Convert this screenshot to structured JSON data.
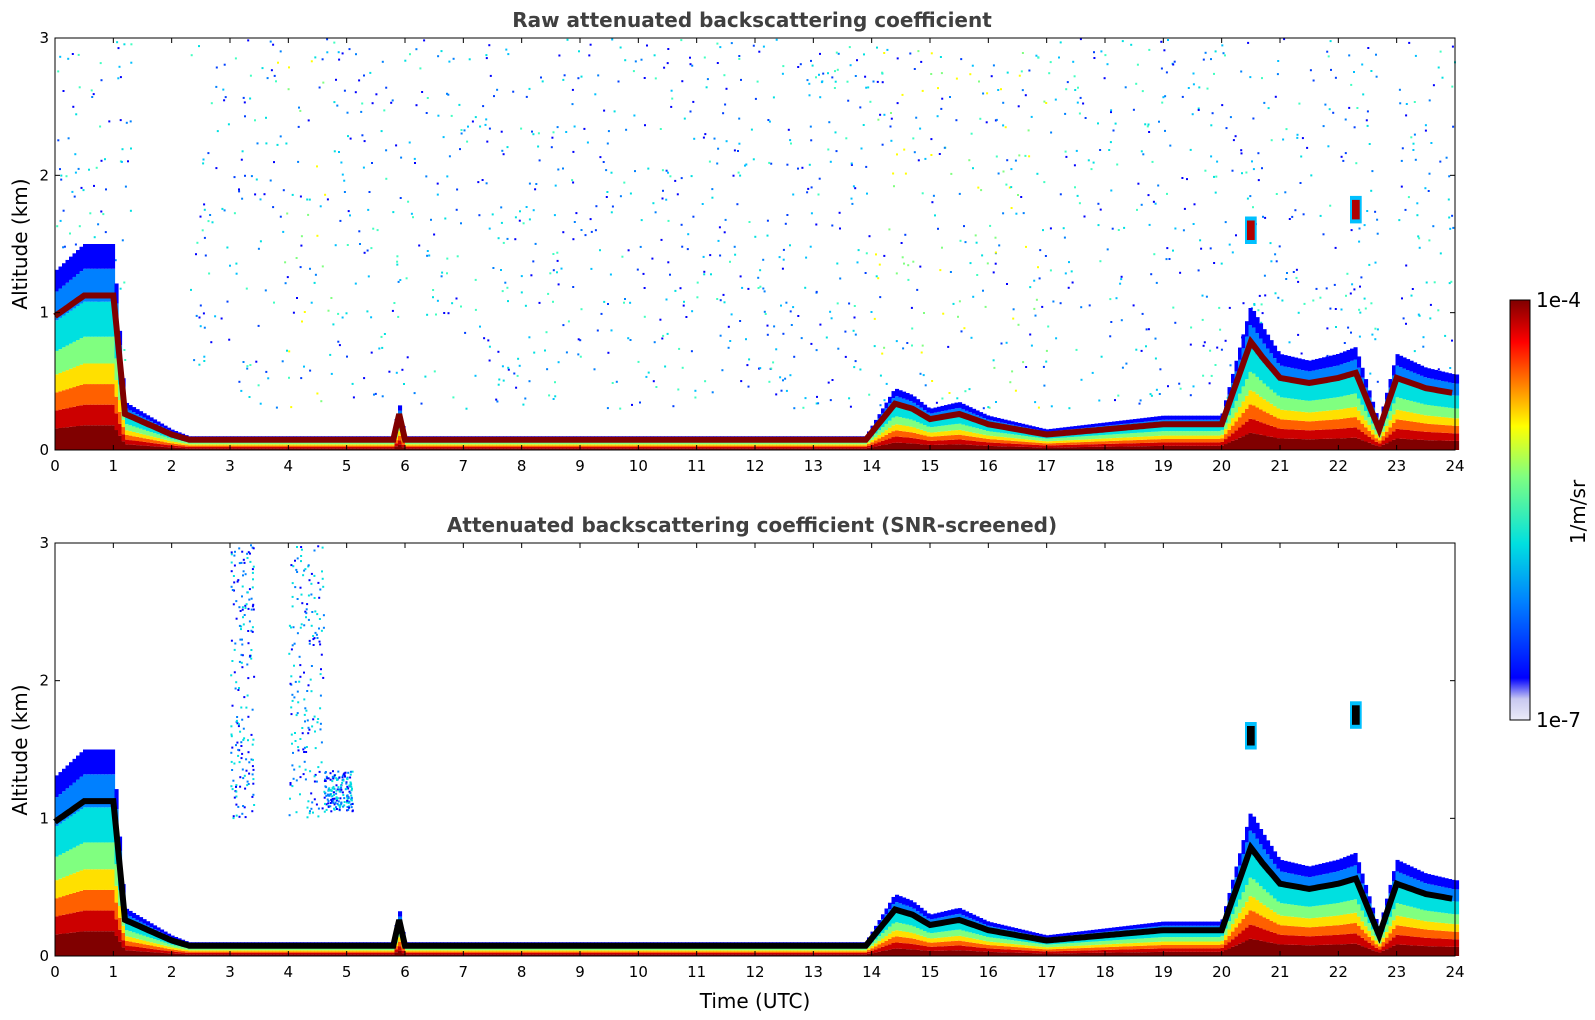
{
  "chart_data": [
    {
      "type": "heatmap",
      "title": "Raw attenuated backscattering coefficient",
      "xlabel": "",
      "ylabel": "Altitude (km)",
      "xlim": [
        0,
        24
      ],
      "ylim": [
        0,
        3
      ],
      "x_ticks": [
        "0",
        "1",
        "2",
        "3",
        "4",
        "5",
        "6",
        "7",
        "8",
        "9",
        "10",
        "11",
        "12",
        "13",
        "14",
        "15",
        "16",
        "17",
        "18",
        "19",
        "20",
        "21",
        "22",
        "23",
        "24"
      ],
      "y_ticks": [
        "0",
        "1",
        "2",
        "3"
      ],
      "screened": false,
      "layer_top_km": {
        "time_utc": [
          0,
          0.5,
          1.0,
          1.2,
          2.0,
          2.3,
          4,
          5.8,
          5.9,
          6.0,
          8,
          10,
          12,
          13.9,
          14.4,
          14.7,
          15.0,
          15.5,
          16.0,
          16.5,
          17,
          18,
          19,
          20,
          20.5,
          20.7,
          21.0,
          21.5,
          22.0,
          22.3,
          22.7,
          23.0,
          23.5,
          24
        ],
        "altitude_km": [
          1.3,
          1.5,
          1.5,
          0.35,
          0.15,
          0.1,
          0.1,
          0.1,
          0.35,
          0.1,
          0.1,
          0.1,
          0.1,
          0.1,
          0.45,
          0.4,
          0.3,
          0.35,
          0.25,
          0.2,
          0.15,
          0.2,
          0.25,
          0.25,
          1.05,
          0.9,
          0.7,
          0.65,
          0.7,
          0.75,
          0.2,
          0.7,
          0.6,
          0.55
        ]
      },
      "elevated_layers": [
        {
          "time_utc": [
            20.4,
            20.6
          ],
          "altitude_km": [
            1.5,
            1.7
          ]
        },
        {
          "time_utc": [
            22.2,
            22.4
          ],
          "altitude_km": [
            1.65,
            1.85
          ]
        }
      ]
    },
    {
      "type": "heatmap",
      "title": "Attenuated backscattering coefficient (SNR-screened)",
      "xlabel": "Time (UTC)",
      "ylabel": "Altitude (km)",
      "xlim": [
        0,
        24
      ],
      "ylim": [
        0,
        3
      ],
      "x_ticks": [
        "0",
        "1",
        "2",
        "3",
        "4",
        "5",
        "6",
        "7",
        "8",
        "9",
        "10",
        "11",
        "12",
        "13",
        "14",
        "15",
        "16",
        "17",
        "18",
        "19",
        "20",
        "21",
        "22",
        "23",
        "24"
      ],
      "y_ticks": [
        "0",
        "1",
        "2",
        "3"
      ],
      "screened": true,
      "layer_top_km": {
        "time_utc": [
          0,
          0.5,
          1.0,
          1.2,
          2.0,
          2.3,
          4,
          5.8,
          5.9,
          6.0,
          8,
          10,
          12,
          13.9,
          14.4,
          14.7,
          15.0,
          15.5,
          16.0,
          16.5,
          17,
          18,
          19,
          20,
          20.5,
          20.7,
          21.0,
          21.5,
          22.0,
          22.3,
          22.7,
          23.0,
          23.5,
          24
        ],
        "altitude_km": [
          1.3,
          1.5,
          1.5,
          0.35,
          0.15,
          0.1,
          0.1,
          0.1,
          0.35,
          0.1,
          0.1,
          0.1,
          0.1,
          0.1,
          0.45,
          0.4,
          0.3,
          0.35,
          0.25,
          0.2,
          0.15,
          0.2,
          0.25,
          0.25,
          1.05,
          0.9,
          0.7,
          0.65,
          0.7,
          0.75,
          0.2,
          0.7,
          0.6,
          0.55
        ]
      },
      "elevated_layers": [
        {
          "time_utc": [
            20.4,
            20.6
          ],
          "altitude_km": [
            1.5,
            1.7
          ]
        },
        {
          "time_utc": [
            22.2,
            22.4
          ],
          "altitude_km": [
            1.65,
            1.85
          ]
        }
      ]
    }
  ],
  "colorbar": {
    "label": "1/m/sr",
    "max_label": "1e-4",
    "min_label": "1e-7",
    "scale": "log",
    "colormap": "jet",
    "colors": [
      "#ececf8",
      "#c8c8f0",
      "#0000ff",
      "#0080ff",
      "#00e0e0",
      "#80ff80",
      "#ffff00",
      "#ff8000",
      "#ff0000",
      "#800000"
    ]
  }
}
